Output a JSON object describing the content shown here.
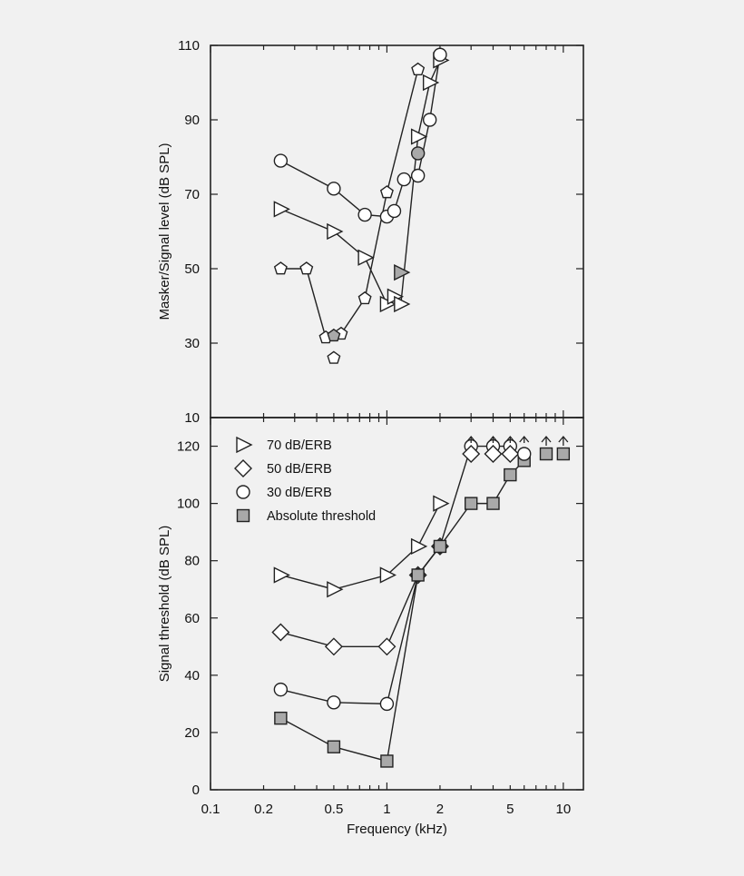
{
  "chart_data": [
    {
      "type": "line",
      "panel": "top",
      "ylabel": "Masker/Signal level (dB SPL)",
      "xscale": "log",
      "xlim": [
        0.1,
        13
      ],
      "ylim": [
        10,
        110
      ],
      "yticks": [
        10,
        30,
        50,
        70,
        90,
        110
      ],
      "legend": "none",
      "grid": false,
      "series": [
        {
          "marker": "pentagon",
          "fill": "open",
          "x": [
            0.25,
            0.35,
            0.45,
            0.55,
            0.75,
            1.0,
            1.5
          ],
          "y": [
            50,
            50,
            31.5,
            32.5,
            42,
            70.5,
            103.5
          ]
        },
        {
          "marker": "pentagon",
          "fill": "gray",
          "x": [
            0.5
          ],
          "y": [
            32
          ]
        },
        {
          "marker": "pentagon",
          "fill": "open",
          "x": [
            0.5
          ],
          "y": [
            26
          ]
        },
        {
          "marker": "triangle-right",
          "fill": "open",
          "x": [
            0.25,
            0.5,
            0.75,
            1.0,
            1.1,
            1.2,
            1.5,
            1.75,
            2.0
          ],
          "y": [
            66,
            60,
            53,
            40.5,
            42.5,
            40.5,
            85.5,
            100,
            106
          ]
        },
        {
          "marker": "triangle-right",
          "fill": "gray",
          "x": [
            1.2
          ],
          "y": [
            49
          ]
        },
        {
          "marker": "circle",
          "fill": "open",
          "x": [
            0.25,
            0.5,
            0.75,
            1.0,
            1.1,
            1.25,
            1.5,
            1.75,
            2.0
          ],
          "y": [
            79,
            71.5,
            64.5,
            64,
            65.5,
            74,
            75,
            90,
            107.5
          ]
        },
        {
          "marker": "circle",
          "fill": "gray",
          "x": [
            1.5
          ],
          "y": [
            81
          ]
        }
      ]
    },
    {
      "type": "line",
      "panel": "bottom",
      "xlabel": "Frequency (kHz)",
      "ylabel": "Signal threshold (dB SPL)",
      "xscale": "log",
      "xlim": [
        0.1,
        13
      ],
      "ylim": [
        0,
        130
      ],
      "xticks": [
        0.1,
        0.2,
        0.5,
        1,
        2,
        5,
        10
      ],
      "xticklabels": [
        "0.1",
        "0.2",
        "0.5",
        "1",
        "2",
        "5",
        "10"
      ],
      "yticks": [
        0,
        20,
        40,
        60,
        80,
        100,
        120
      ],
      "legend": "top-left",
      "grid": false,
      "series": [
        {
          "name": "70 dB/ERB",
          "marker": "triangle-right",
          "fill": "open",
          "x": [
            0.25,
            0.5,
            1.0,
            1.5,
            2.0
          ],
          "y": [
            75,
            70,
            75,
            85,
            100
          ]
        },
        {
          "name": "50 dB/ERB",
          "marker": "diamond",
          "fill": "open",
          "x": [
            0.25,
            0.5,
            1.0,
            1.5,
            2.0
          ],
          "y": [
            55,
            50,
            50,
            75,
            85
          ]
        },
        {
          "name": "30 dB/ERB",
          "marker": "circle",
          "fill": "open",
          "x": [
            0.25,
            0.5,
            1.0,
            1.5,
            2.0,
            3.0,
            4.0,
            5.0
          ],
          "y": [
            35,
            30.5,
            30,
            75,
            85,
            120,
            120,
            120
          ]
        },
        {
          "name": "Absolute threshold",
          "marker": "square",
          "fill": "gray",
          "x": [
            0.25,
            0.5,
            1.0,
            1.5,
            2.0,
            3.0,
            4.0,
            5.0,
            6.0
          ],
          "y": [
            25,
            15,
            10,
            75,
            85,
            100,
            100,
            110,
            115
          ]
        }
      ],
      "above_range": [
        {
          "marker": "diamond",
          "x": [
            3.0,
            4.0,
            5.0
          ]
        },
        {
          "marker": "circle",
          "x": [
            6.0
          ]
        },
        {
          "marker": "square",
          "x": [
            8.0,
            10.0
          ]
        }
      ]
    }
  ],
  "colors": {
    "line": "#222222",
    "gray_fill": "#a9a9a9",
    "open_fill": "#ffffff",
    "background": "#f1f1f1"
  }
}
